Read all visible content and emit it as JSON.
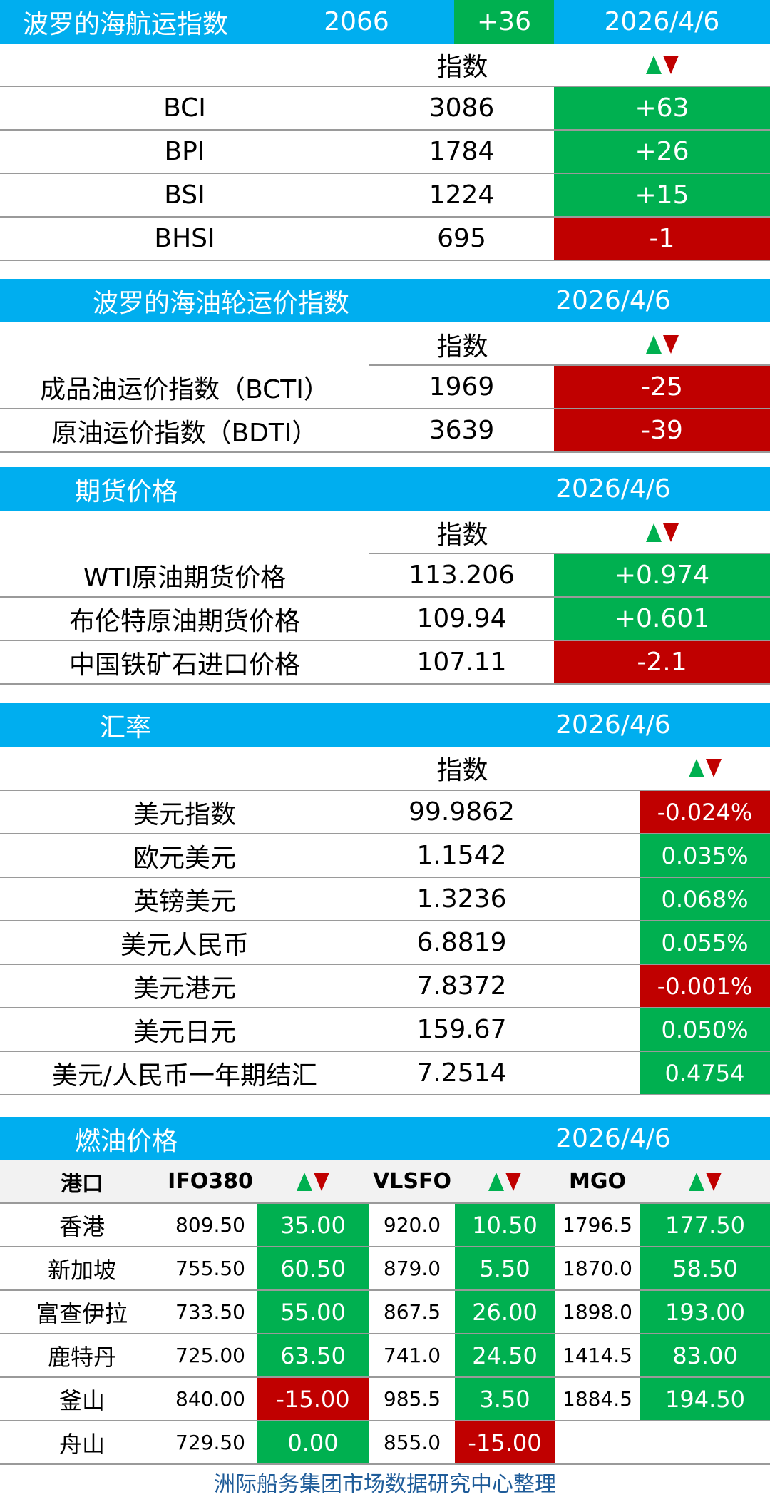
{
  "bdi": {
    "title": "波罗的海航运指数",
    "value": "2066",
    "change": "+36",
    "date": "2026/4/6",
    "col_index": "指数",
    "rows": [
      {
        "name": "BCI",
        "value": "3086",
        "change": "+63"
      },
      {
        "name": "BPI",
        "value": "1784",
        "change": "+26"
      },
      {
        "name": "BSI",
        "value": "1224",
        "change": "+15"
      },
      {
        "name": "BHSI",
        "value": "695",
        "change": "-1"
      }
    ]
  },
  "tanker": {
    "title": "波罗的海油轮运价指数",
    "date": "2026/4/6",
    "col_index": "指数",
    "rows": [
      {
        "name": "成品油运价指数（BCTI）",
        "value": "1969",
        "change": "-25"
      },
      {
        "name": "原油运价指数（BDTI）",
        "value": "3639",
        "change": "-39"
      }
    ]
  },
  "futures": {
    "title": "期货价格",
    "date": "2026/4/6",
    "col_index": "指数",
    "rows": [
      {
        "name": "WTI原油期货价格",
        "value": "113.206",
        "change": "+0.974"
      },
      {
        "name": "布伦特原油期货价格",
        "value": "109.94",
        "change": "+0.601"
      },
      {
        "name": "中国铁矿石进口价格",
        "value": "107.11",
        "change": "-2.1"
      }
    ]
  },
  "fx": {
    "title": "汇率",
    "date": "2026/4/6",
    "col_index": "指数",
    "rows": [
      {
        "name": "美元指数",
        "value": "99.9862",
        "change": "-0.024%"
      },
      {
        "name": "欧元美元",
        "value": "1.1542",
        "change": "0.035%"
      },
      {
        "name": "英镑美元",
        "value": "1.3236",
        "change": "0.068%"
      },
      {
        "name": "美元人民币",
        "value": "6.8819",
        "change": "0.055%"
      },
      {
        "name": "美元港元",
        "value": "7.8372",
        "change": "-0.001%"
      },
      {
        "name": "美元日元",
        "value": "159.67",
        "change": "0.050%"
      },
      {
        "name": "美元/人民币一年期结汇",
        "value": "7.2514",
        "change": "0.4754"
      }
    ]
  },
  "fuel": {
    "title": "燃油价格",
    "date": "2026/4/6",
    "headers": {
      "port": "港口",
      "ifo": "IFO380",
      "vlsfo": "VLSFO",
      "mgo": "MGO"
    },
    "rows": [
      {
        "port": "香港",
        "ifo": "809.50",
        "ifo_chg": "35.00",
        "vlsfo": "920.0",
        "vlsfo_chg": "10.50",
        "mgo": "1796.5",
        "mgo_chg": "177.50"
      },
      {
        "port": "新加坡",
        "ifo": "755.50",
        "ifo_chg": "60.50",
        "vlsfo": "879.0",
        "vlsfo_chg": "5.50",
        "mgo": "1870.0",
        "mgo_chg": "58.50"
      },
      {
        "port": "富查伊拉",
        "ifo": "733.50",
        "ifo_chg": "55.00",
        "vlsfo": "867.5",
        "vlsfo_chg": "26.00",
        "mgo": "1898.0",
        "mgo_chg": "193.00"
      },
      {
        "port": "鹿特丹",
        "ifo": "725.00",
        "ifo_chg": "63.50",
        "vlsfo": "741.0",
        "vlsfo_chg": "24.50",
        "mgo": "1414.5",
        "mgo_chg": "83.00"
      },
      {
        "port": "釜山",
        "ifo": "840.00",
        "ifo_chg": "-15.00",
        "vlsfo": "985.5",
        "vlsfo_chg": "3.50",
        "mgo": "1884.5",
        "mgo_chg": "194.50"
      },
      {
        "port": "舟山",
        "ifo": "729.50",
        "ifo_chg": "0.00",
        "vlsfo": "855.0",
        "vlsfo_chg": "-15.00",
        "mgo": "",
        "mgo_chg": ""
      }
    ]
  },
  "footer": "洲际船务集团市场数据研究中心整理",
  "colors": {
    "header": "#00AEEF",
    "up": "#00B050",
    "down": "#C00000",
    "footer_text": "#1F5C99"
  }
}
